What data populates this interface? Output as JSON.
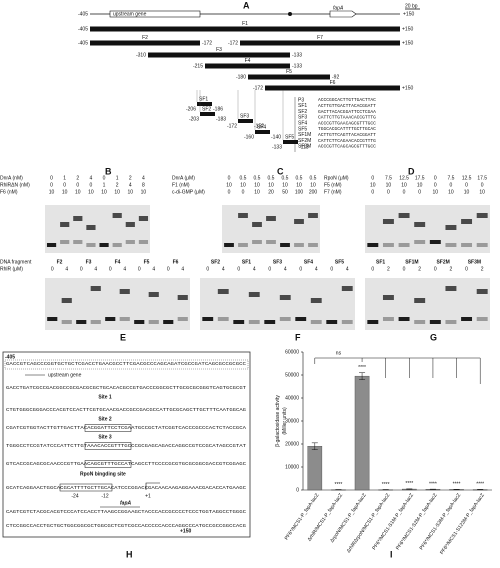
{
  "panel_a": {
    "label": "A",
    "scale": "20 bp",
    "left_end": "-405",
    "right_end": "+150",
    "genes": [
      "upstream gene",
      "fapA"
    ],
    "fragments": [
      {
        "name": "F1",
        "start": "-405",
        "end": "+150"
      },
      {
        "name": "F2",
        "start": "-405",
        "end": "-172"
      },
      {
        "name": "F7",
        "start": "-172",
        "end": "+150"
      },
      {
        "name": "F3",
        "start": "-310",
        "end": "-133"
      },
      {
        "name": "F4",
        "start": "-215",
        "end": "-133"
      },
      {
        "name": "F5",
        "start": "-180",
        "end": "-92"
      },
      {
        "name": "F6",
        "start": "-172",
        "end": "+150"
      }
    ],
    "short_fragments": [
      {
        "name": "SF1",
        "start": "-206",
        "end": "-186"
      },
      {
        "name": "SF2",
        "start": "-203",
        "end": "-183"
      },
      {
        "name": "SF3",
        "start": "-172",
        "end": "-152"
      },
      {
        "name": "SF4",
        "start": "-160",
        "end": "-140"
      },
      {
        "name": "SF5",
        "start": "-133",
        "end": "-113"
      }
    ],
    "sequences": [
      {
        "name": "P3",
        "seq": "ACCCGGCACTTGTTGACTTAC"
      },
      {
        "name": "SF1",
        "seq": "ACTTGTTGACTTACACGGATT"
      },
      {
        "name": "SF2",
        "seq": "GACTTACACGGATTCCTCGAA"
      },
      {
        "name": "SF3",
        "seq": "CATTCTTGTAAACACCGTTTG"
      },
      {
        "name": "SF4",
        "seq": "ACCCGTTGAACAGCGTTTGCC"
      },
      {
        "name": "SF5",
        "seq": "TGGCACGCATTTTGCTTGCAC"
      },
      {
        "name": "SF1M",
        "seq": "ACTTGTTCAGTTACACGGATT"
      },
      {
        "name": "SF2M",
        "seq": "CATTCTTCAGAACACCGTTTG"
      },
      {
        "name": "SF3M",
        "seq": "ACCCGTTCAGCAGCGTTTGCC"
      }
    ]
  },
  "gels": [
    {
      "label": "B",
      "rows": [
        {
          "name": "DnrA (nM)",
          "values": [
            0,
            1,
            2,
            4,
            0,
            1,
            2,
            4
          ]
        },
        {
          "name": "RhlRΔN (nM)",
          "values": [
            0,
            0,
            0,
            0,
            1,
            2,
            4,
            8
          ]
        },
        {
          "name": "F6 (nM)",
          "values": [
            10,
            10,
            10,
            10,
            10,
            10,
            10,
            10
          ]
        }
      ]
    },
    {
      "label": "C",
      "rows": [
        {
          "name": "DnrA (μM)",
          "values": [
            0,
            0.5,
            0.5,
            0.5,
            0.5,
            0.5,
            0.5
          ]
        },
        {
          "name": "F1 (nM)",
          "values": [
            10,
            10,
            10,
            10,
            10,
            10,
            10
          ]
        },
        {
          "name": "c-di-GMP (μM)",
          "values": [
            0,
            0,
            10,
            20,
            50,
            100,
            200
          ]
        }
      ]
    },
    {
      "label": "D",
      "rows": [
        {
          "name": "RpoN (μM)",
          "values": [
            0,
            7.5,
            12.5,
            17.5,
            0,
            7.5,
            12.5,
            17.5
          ]
        },
        {
          "name": "F5 (nM)",
          "values": [
            10,
            10,
            10,
            10,
            0,
            0,
            0,
            0
          ]
        },
        {
          "name": "F7 (nM)",
          "values": [
            0,
            0,
            0,
            0,
            10,
            10,
            10,
            10
          ]
        }
      ]
    },
    {
      "label": "E",
      "group_title": "DNA fragment",
      "groups": [
        "F2",
        "F3",
        "F4",
        "F5",
        "F6"
      ],
      "rows": [
        {
          "name": "RhlR (μM)",
          "values": [
            0,
            4,
            0,
            4,
            0,
            4,
            0,
            4,
            0,
            4
          ]
        }
      ]
    },
    {
      "label": "F",
      "groups": [
        "SF2",
        "SF1",
        "SF3",
        "SF4",
        "SF5"
      ],
      "rows": [
        {
          "name": "",
          "values": [
            0,
            4,
            0,
            4,
            0,
            4,
            0,
            4,
            0,
            4
          ]
        }
      ]
    },
    {
      "label": "G",
      "groups": [
        "SF1",
        "SF1M",
        "SF2M",
        "SF3M"
      ],
      "rows": [
        {
          "name": "",
          "values": [
            0,
            2,
            0,
            2,
            0,
            2,
            0,
            2
          ]
        }
      ]
    }
  ],
  "panel_h": {
    "label": "H",
    "start": "-405",
    "end": "+150",
    "upstream": "upstream gene",
    "sites": [
      "Site 1",
      "Site 2",
      "Site 3"
    ],
    "rpon": "RpoN bingding site",
    "positions": [
      "-24",
      "-12",
      "+1"
    ],
    "gene": "fapA",
    "lines": [
      "GACCGTCAGCCCGGTGCTGCTCGACCTGAACGCCTTCGACGCCCAGCAGATCGCCGATCAGCGCCGCGCC",
      "GACCTGATCGCCGACGGCCGCGACGCGCTGCACACGCCGTGACCCGGCGCTTGCGCGCGGGTCAGTGCGCGT",
      "CTGTGGGCGGGACCCACGTCCACTTCGTGCAACGACCGCCGACGCCATTGCGCAGCTTGCTTTCAATGGCAG",
      "CGATCGTGGTACTTGTTGACTTACACGGATTCCTCGAATGCCGCTATCGGTCACCCGCCCACTCTACCGCA",
      "TGGGCCTCCGTATCCCATTCTTGTAAACACCGTTTGCCCGCGAGCAGACCAGGCCGTCCGCATAGCCGTAT",
      "GTCACCGCAGCGCAACCCGTTGAACAGCGTTTGCCATCAGCCTTCCCCGCGTGCGCGGCGACCGTCGGAGC",
      "GCATCAGGAACTGGCACGCATTTTGCTTGCACATCCCGGACCGACAACAAGAGGAAACGACACCATGAAGC",
      "CAGTCGTCTACGCACGTCCCATCCACCTTAAGCCGGAAGCTACCCACCGCCCCTCCCTGGTAGGCCTGGGC",
      "CTCCGGCCACCTGCTGCTGGCGGCGCTGGCGCTCGTCGCCACCCCCACCCAGGCCCATGCCGCCGGCCACG"
    ]
  },
  "chart_data": {
    "type": "bar",
    "label": "I",
    "ylabel": "β-galactosidase activity\n(Miller units)",
    "categories": [
      "PF6*/MCS1-P_fapA-lacZ",
      "ΔrhlR/MCS1-P_fapA-lacZ",
      "ΔrpoN/MCS1-P_fapA-lacZ",
      "ΔrhlRΔrpoN/MCS1-P_fapA-lacZ",
      "PF6*/MCS1-S1M-P_fapA-lacZ",
      "PF6*/MCS1-S2M-P_fapA-lacZ",
      "PF6*/MCS1-S3M-P_fapA-lacZ",
      "PF6*/MCS1-S123M-P_fapA-lacZ"
    ],
    "values": [
      19000,
      150,
      49500,
      150,
      400,
      300,
      250,
      200
    ],
    "errors": [
      1500,
      50,
      1500,
      50,
      100,
      80,
      60,
      60
    ],
    "color": "#8c8c8c",
    "significance": [
      null,
      "****",
      "****",
      "****",
      "****",
      "****",
      "****",
      "****"
    ],
    "bracket_label": "ns",
    "ylim": [
      0,
      60000
    ],
    "yticks": [
      0,
      10000,
      20000,
      30000,
      40000,
      50000,
      60000
    ]
  }
}
